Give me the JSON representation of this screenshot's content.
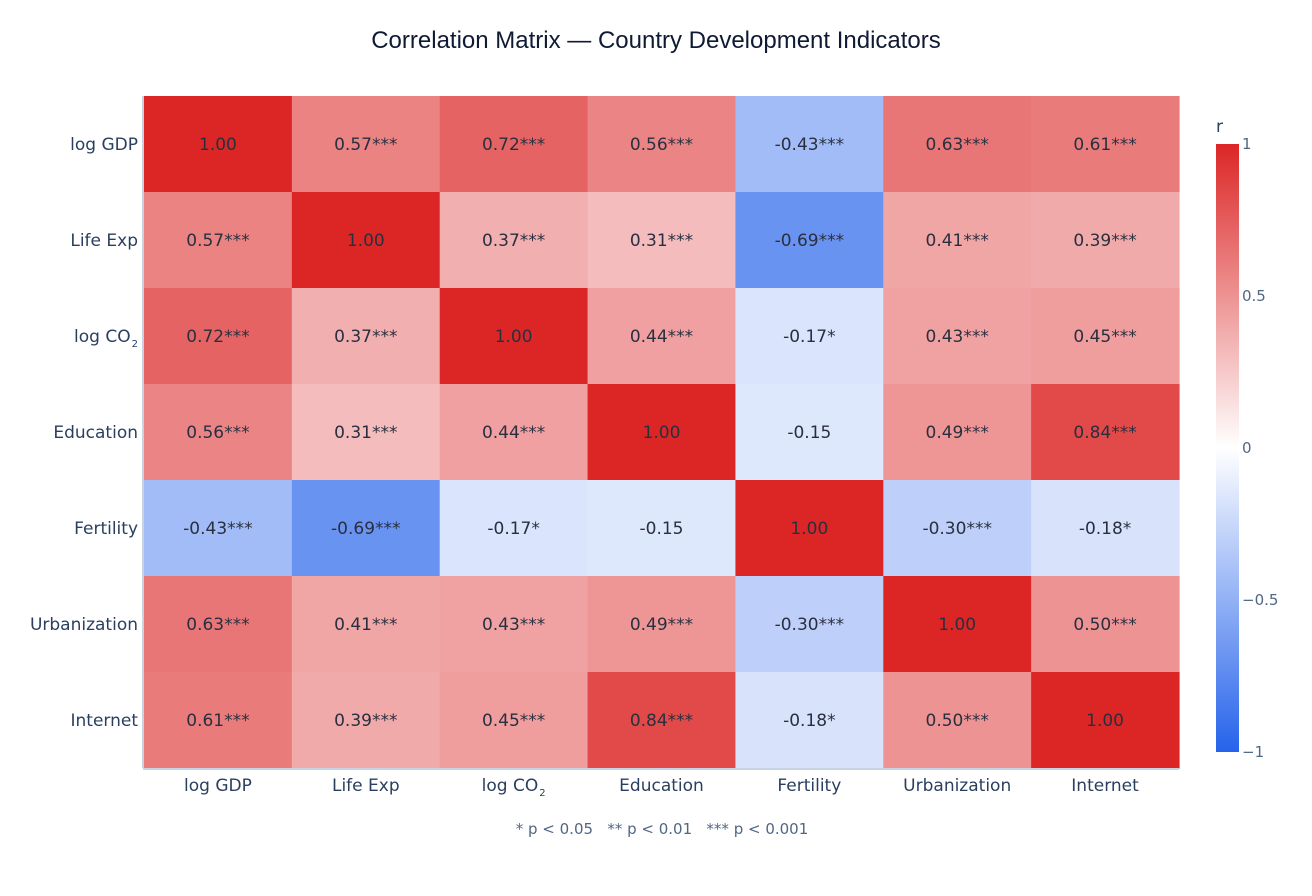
{
  "chart_data": {
    "type": "heatmap",
    "title": "Correlation Matrix — Country Development Indicators",
    "xlabel": "",
    "ylabel": "",
    "categories": [
      {
        "text": "log GDP",
        "sub": ""
      },
      {
        "text": "Life Exp",
        "sub": ""
      },
      {
        "text": "log CO",
        "sub": "2"
      },
      {
        "text": "Education",
        "sub": ""
      },
      {
        "text": "Fertility",
        "sub": ""
      },
      {
        "text": "Urbanization",
        "sub": ""
      },
      {
        "text": "Internet",
        "sub": ""
      }
    ],
    "values": [
      [
        1.0,
        0.57,
        0.72,
        0.56,
        -0.43,
        0.63,
        0.61
      ],
      [
        0.57,
        1.0,
        0.37,
        0.31,
        -0.69,
        0.41,
        0.39
      ],
      [
        0.72,
        0.37,
        1.0,
        0.44,
        -0.17,
        0.43,
        0.45
      ],
      [
        0.56,
        0.31,
        0.44,
        1.0,
        -0.15,
        0.49,
        0.84
      ],
      [
        -0.43,
        -0.69,
        -0.17,
        -0.15,
        1.0,
        -0.3,
        -0.18
      ],
      [
        0.63,
        0.41,
        0.43,
        0.49,
        -0.3,
        1.0,
        0.5
      ],
      [
        0.61,
        0.39,
        0.45,
        0.84,
        -0.18,
        0.5,
        1.0
      ]
    ],
    "labels": [
      [
        "1.00",
        "0.57***",
        "0.72***",
        "0.56***",
        "-0.43***",
        "0.63***",
        "0.61***"
      ],
      [
        "0.57***",
        "1.00",
        "0.37***",
        "0.31***",
        "-0.69***",
        "0.41***",
        "0.39***"
      ],
      [
        "0.72***",
        "0.37***",
        "1.00",
        "0.44***",
        "-0.17*",
        "0.43***",
        "0.45***"
      ],
      [
        "0.56***",
        "0.31***",
        "0.44***",
        "1.00",
        "-0.15",
        "0.49***",
        "0.84***"
      ],
      [
        "-0.43***",
        "-0.69***",
        "-0.17*",
        "-0.15",
        "1.00",
        "-0.30***",
        "-0.18*"
      ],
      [
        "0.63***",
        "0.41***",
        "0.43***",
        "0.49***",
        "-0.30***",
        "1.00",
        "0.50***"
      ],
      [
        "0.61***",
        "0.39***",
        "0.45***",
        "0.84***",
        "-0.18*",
        "0.50***",
        "1.00"
      ]
    ],
    "zlim": [
      -1,
      1
    ],
    "colorscale": [
      [
        0,
        "#2563eb"
      ],
      [
        0.5,
        "#ffffff"
      ],
      [
        1,
        "#dc2626"
      ]
    ],
    "colorbar": {
      "title": "r",
      "ticks": [
        1,
        0.5,
        0,
        -0.5,
        -1
      ],
      "tick_labels": [
        "1",
        "0.5",
        "0",
        "−0.5",
        "−1"
      ]
    },
    "annotation": "* p < 0.05   ** p < 0.01   *** p < 0.001",
    "grid": false,
    "legend": "colorbar-right"
  }
}
